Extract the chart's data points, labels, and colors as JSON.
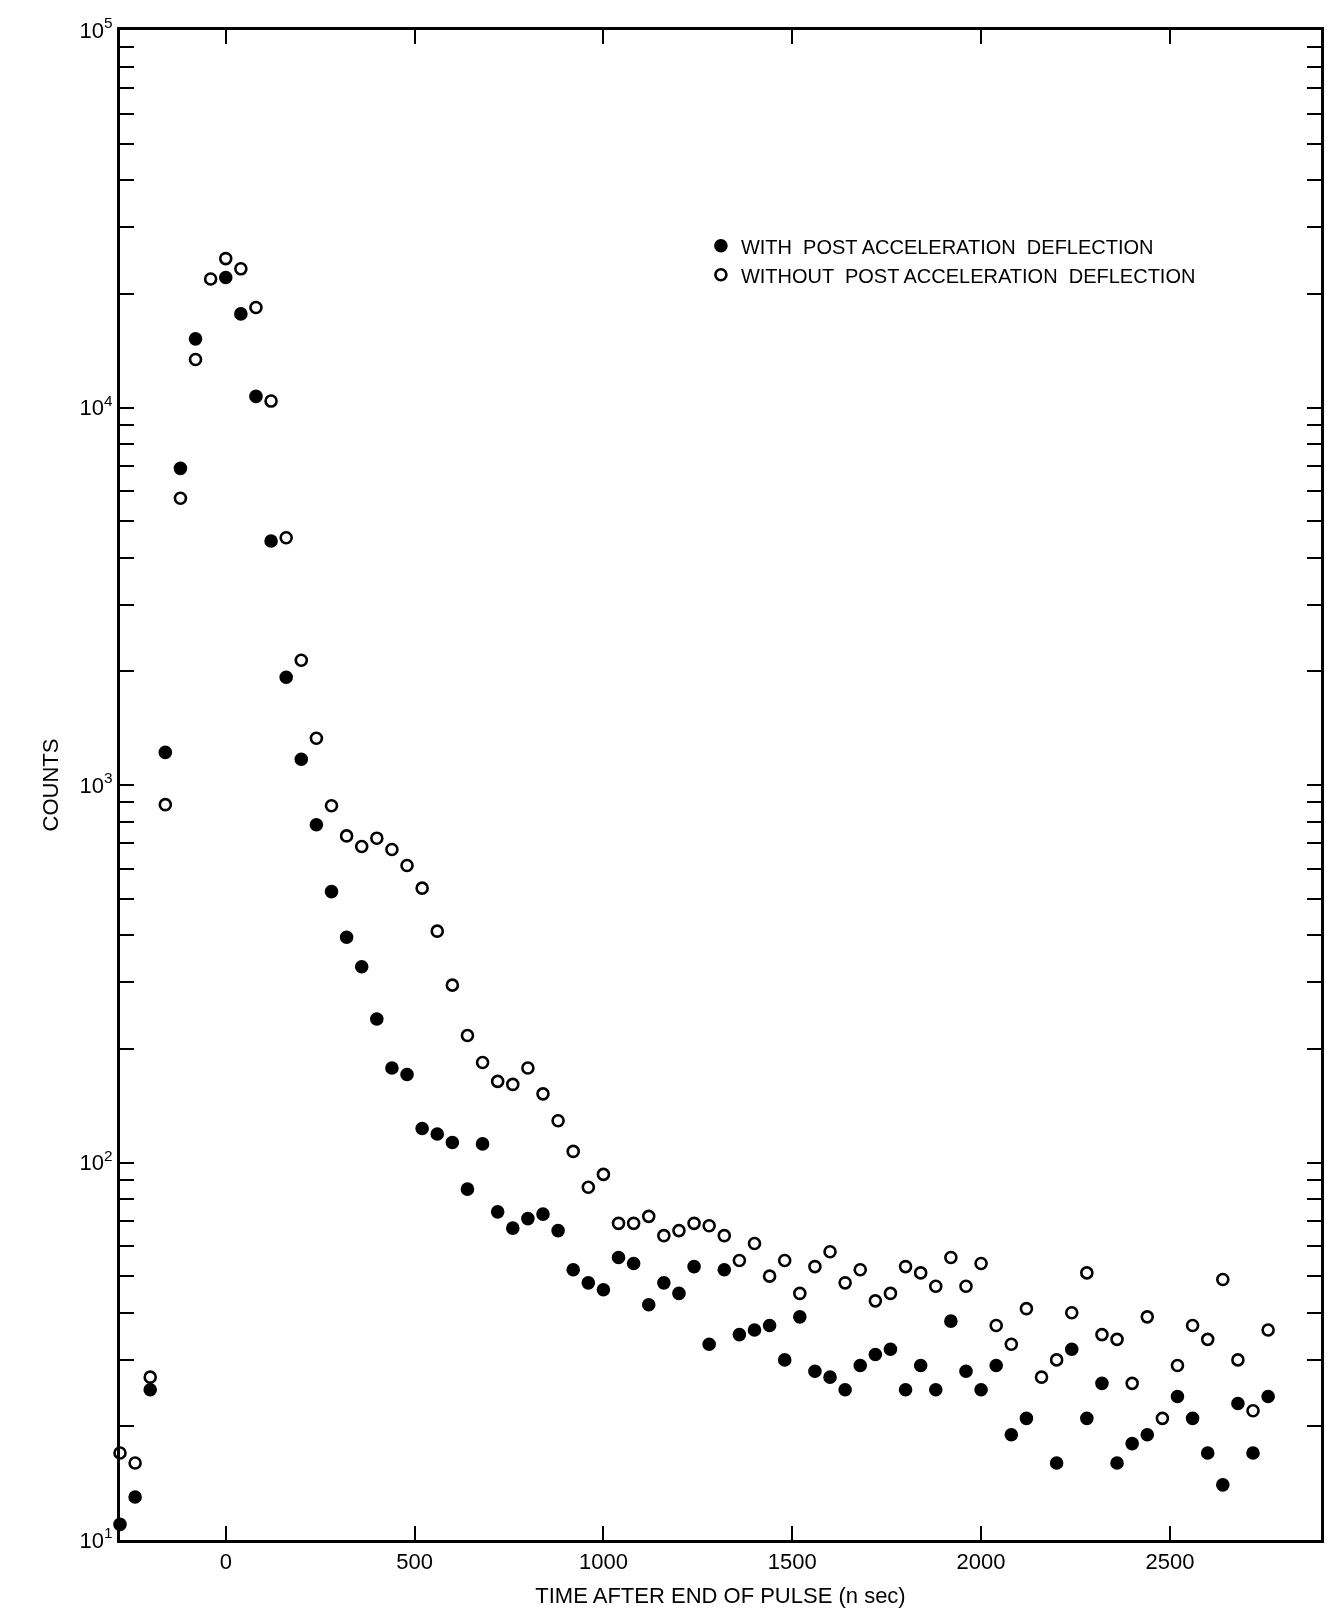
{
  "chart_data": {
    "type": "scatter",
    "xlabel": "TIME AFTER END OF PULSE (n sec)",
    "ylabel": "COUNTS",
    "x": [
      -280,
      -240,
      -200,
      -160,
      -120,
      -80,
      -40,
      0,
      40,
      80,
      120,
      160,
      200,
      240,
      280,
      320,
      360,
      400,
      440,
      480,
      520,
      560,
      600,
      640,
      680,
      720,
      760,
      800,
      840,
      880,
      920,
      960,
      1000,
      1040,
      1080,
      1120,
      1160,
      1200,
      1240,
      1280,
      1320,
      1360,
      1400,
      1440,
      1480,
      1520,
      1560,
      1600,
      1640,
      1680,
      1720,
      1760,
      1800,
      1840,
      1880,
      1920,
      1960,
      2000,
      2040,
      2080,
      2120,
      2160,
      2200,
      2240,
      2280,
      2320,
      2360,
      2400,
      2440,
      2480,
      2520,
      2560,
      2600,
      2640,
      2680,
      2720,
      2760
    ],
    "series": [
      {
        "name": "WITH  POST ACCELERATION  DEFLECTION",
        "color": "#000000",
        "values": [
          11,
          13,
          25,
          1220,
          6900,
          15200,
          null,
          22100,
          17700,
          10700,
          4430,
          1930,
          1170,
          785,
          522,
          395,
          330,
          240,
          178,
          171,
          123,
          119,
          113,
          85,
          112,
          74,
          67,
          71,
          73,
          66,
          52,
          48,
          46,
          56,
          54,
          42,
          48,
          45,
          53,
          33,
          52,
          35,
          36,
          37,
          30,
          39,
          28,
          27,
          25,
          29,
          31,
          32,
          25,
          29,
          25,
          38,
          28,
          25,
          29,
          19,
          21,
          null,
          16,
          32,
          21,
          26,
          16,
          18,
          19,
          null,
          24,
          21,
          17,
          14,
          23,
          17,
          24
        ]
      },
      {
        "name": "WITHOUT  POST ACCELERATION  DEFLECTION",
        "color": "#000000",
        "values": [
          17,
          16,
          27,
          887,
          5750,
          13400,
          21900,
          24800,
          23300,
          18400,
          10400,
          4520,
          2140,
          1330,
          881,
          733,
          687,
          723,
          675,
          612,
          533,
          410,
          295,
          217,
          184,
          164,
          161,
          178,
          152,
          129,
          107,
          86,
          93,
          69,
          69,
          72,
          64,
          66,
          69,
          68,
          64,
          55,
          61,
          50,
          55,
          45,
          53,
          58,
          48,
          52,
          43,
          45,
          53,
          51,
          47,
          56,
          47,
          54,
          37,
          33,
          41,
          27,
          30,
          40,
          51,
          35,
          34,
          26,
          39,
          21,
          29,
          37,
          34,
          49,
          30,
          22,
          36
        ]
      }
    ],
    "log": "y",
    "marker": "circle",
    "legend": "top right",
    "xlim": [
      -280,
      2900
    ],
    "xticks": [
      0,
      500,
      1000,
      1500,
      2000,
      2500
    ],
    "ylim": [
      10,
      100000
    ],
    "yticks": [
      {
        "value": 10,
        "label": "10$^{1}$"
      },
      {
        "value": 20,
        "label": null
      },
      {
        "value": 30,
        "label": null
      },
      {
        "value": 40,
        "label": null
      },
      {
        "value": 50,
        "label": null
      },
      {
        "value": 60,
        "label": null
      },
      {
        "value": 70,
        "label": null
      },
      {
        "value": 80,
        "label": null
      },
      {
        "value": 90,
        "label": null
      },
      {
        "value": 100,
        "label": "10$^{2}$"
      },
      {
        "value": 200,
        "label": null
      },
      {
        "value": 300,
        "label": null
      },
      {
        "value": 400,
        "label": null
      },
      {
        "value": 500,
        "label": null
      },
      {
        "value": 600,
        "label": null
      },
      {
        "value": 700,
        "label": null
      },
      {
        "value": 800,
        "label": null
      },
      {
        "value": 900,
        "label": null
      },
      {
        "value": 1000,
        "label": "10$^{3}$"
      },
      {
        "value": 2000,
        "label": null
      },
      {
        "value": 3000,
        "label": null
      },
      {
        "value": 4000,
        "label": null
      },
      {
        "value": 5000,
        "label": null
      },
      {
        "value": 6000,
        "label": null
      },
      {
        "value": 7000,
        "label": null
      },
      {
        "value": 8000,
        "label": null
      },
      {
        "value": 9000,
        "label": null
      },
      {
        "value": 10000,
        "label": "10$^{4}$"
      },
      {
        "value": 20000,
        "label": null
      },
      {
        "value": 30000,
        "label": null
      },
      {
        "value": 40000,
        "label": null
      },
      {
        "value": 50000,
        "label": null
      },
      {
        "value": 60000,
        "label": null
      },
      {
        "value": 70000,
        "label": null
      },
      {
        "value": 80000,
        "label": null
      },
      {
        "value": 90000,
        "label": null
      },
      {
        "value": 100000,
        "label": "10$^{5}$"
      }
    ]
  }
}
